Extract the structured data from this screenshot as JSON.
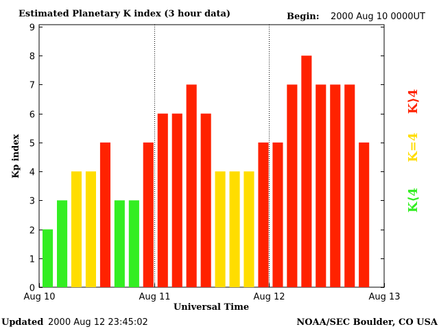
{
  "chart_data": {
    "type": "bar",
    "title": "Estimated Planetary K index (3 hour data)",
    "begin_label": "Begin:",
    "begin_value": "2000 Aug 10 0000UT",
    "ylabel": "Kp index",
    "xlabel": "Universal Time",
    "ylim": [
      0,
      9
    ],
    "yticks": [
      "0",
      "1",
      "2",
      "3",
      "4",
      "5",
      "6",
      "7",
      "8",
      "9"
    ],
    "xlim_days": [
      0,
      3
    ],
    "xticks": [
      "Aug 10",
      "Aug 11",
      "Aug 12",
      "Aug 13"
    ],
    "day_separators_days": [
      1,
      2
    ],
    "bar_interval_hours": 3,
    "values": [
      2,
      3,
      4,
      4,
      5,
      3,
      3,
      5,
      6,
      6,
      7,
      6,
      4,
      4,
      4,
      5,
      5,
      7,
      8,
      7,
      7,
      7,
      5
    ],
    "thresholds": {
      "low_below": 4,
      "moderate_equal": 4,
      "high_above": 4
    },
    "colors": {
      "low": "#33ee22",
      "moderate": "#ffdd00",
      "high": "#ff2200"
    },
    "legend": [
      {
        "label": "K⟨4",
        "level": "low"
      },
      {
        "label": "K=4",
        "level": "moderate"
      },
      {
        "label": "K⟩4",
        "level": "high"
      }
    ]
  },
  "footer": {
    "updated_label": "Updated",
    "updated_value": "2000 Aug 12 23:45:02",
    "source": "NOAA/SEC Boulder, CO USA"
  }
}
